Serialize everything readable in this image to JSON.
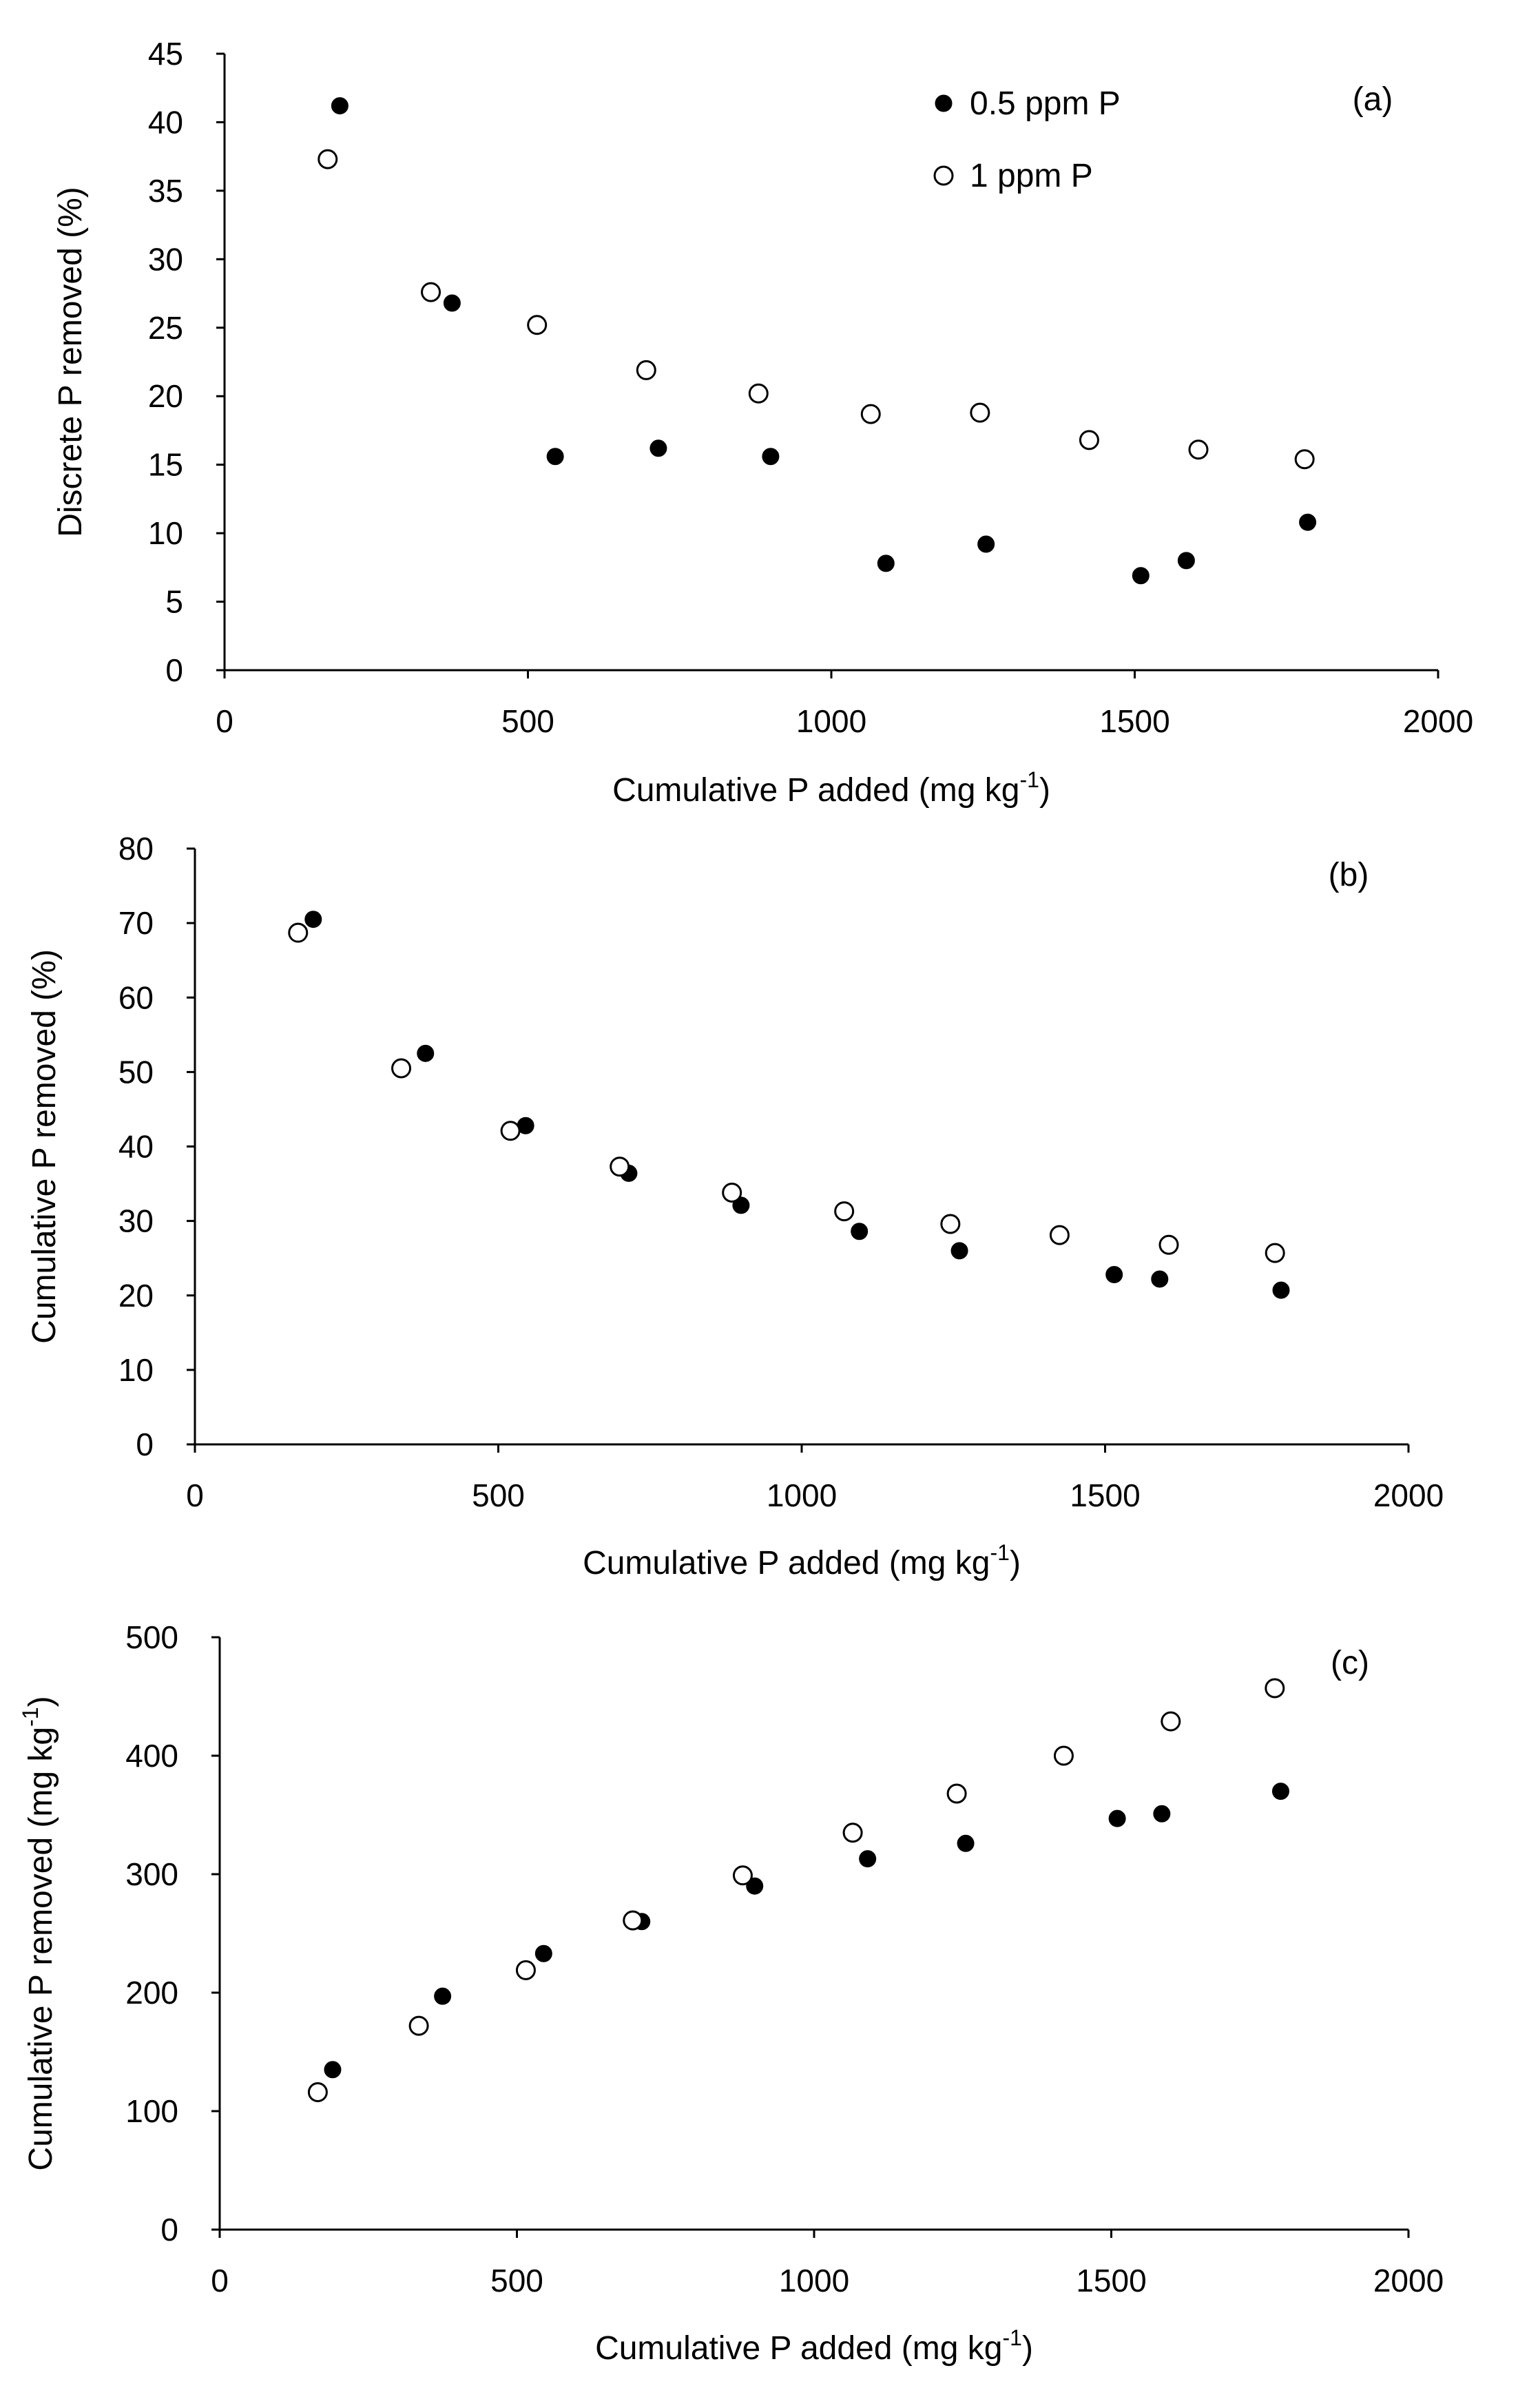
{
  "figure_colors": {
    "filled": "#000000",
    "open_fill": "#ffffff",
    "stroke": "#000000"
  },
  "chart_data": [
    {
      "panel": "(a)",
      "type": "scatter",
      "title": "",
      "xlabel": "Cumulative P added (mg kg",
      "xlabel_sup": "-1",
      "xlabel_end": ")",
      "ylabel": "Discrete P removed (%)",
      "xlim": [
        0,
        2000
      ],
      "ylim": [
        0,
        45
      ],
      "xticks": [
        0,
        500,
        1000,
        1500,
        2000
      ],
      "yticks": [
        0,
        5,
        10,
        15,
        20,
        25,
        30,
        35,
        40,
        45
      ],
      "legend": {
        "position": "top-right",
        "entries": [
          "0.5 ppm P",
          "1 ppm P"
        ]
      },
      "series": [
        {
          "name": "0.5 ppm P",
          "marker": "filled-circle",
          "x": [
            190,
            375,
            545,
            715,
            900,
            1090,
            1255,
            1510,
            1585,
            1785
          ],
          "y": [
            41.2,
            26.8,
            15.6,
            16.2,
            15.6,
            7.8,
            9.2,
            6.9,
            8.0,
            10.8
          ]
        },
        {
          "name": "1 ppm P",
          "marker": "open-circle",
          "x": [
            170,
            340,
            515,
            695,
            880,
            1065,
            1245,
            1425,
            1605,
            1780
          ],
          "y": [
            37.3,
            27.6,
            25.2,
            21.9,
            20.2,
            18.7,
            18.8,
            16.8,
            16.1,
            15.4
          ]
        }
      ]
    },
    {
      "panel": "(b)",
      "type": "scatter",
      "title": "",
      "xlabel": "Cumulative P added (mg kg",
      "xlabel_sup": "-1",
      "xlabel_end": ")",
      "ylabel": "Cumulative P removed (%)",
      "xlim": [
        0,
        2000
      ],
      "ylim": [
        0,
        80
      ],
      "xticks": [
        0,
        500,
        1000,
        1500,
        2000
      ],
      "yticks": [
        0,
        10,
        20,
        30,
        40,
        50,
        60,
        70,
        80
      ],
      "series": [
        {
          "name": "0.5 ppm P",
          "marker": "filled-circle",
          "x": [
            195,
            380,
            545,
            715,
            900,
            1095,
            1260,
            1515,
            1590,
            1790
          ],
          "y": [
            70.5,
            52.5,
            42.8,
            36.4,
            32.1,
            28.6,
            26.0,
            22.8,
            22.2,
            20.7
          ]
        },
        {
          "name": "1 ppm P",
          "marker": "open-circle",
          "x": [
            170,
            340,
            520,
            700,
            885,
            1070,
            1245,
            1425,
            1605,
            1780
          ],
          "y": [
            68.7,
            50.5,
            42.1,
            37.3,
            33.8,
            31.3,
            29.6,
            28.1,
            26.8,
            25.7
          ]
        }
      ]
    },
    {
      "panel": "(c)",
      "type": "scatter",
      "title": "",
      "xlabel": "Cumulative P added (mg kg",
      "xlabel_sup": "-1",
      "xlabel_end": ")",
      "ylabel": "Cumulative P removed (mg kg",
      "ylabel_sup": "-1",
      "ylabel_end": ")",
      "xlim": [
        0,
        2000
      ],
      "ylim": [
        0,
        500
      ],
      "xticks": [
        0,
        500,
        1000,
        1500,
        2000
      ],
      "yticks": [
        0,
        100,
        200,
        300,
        400,
        500
      ],
      "series": [
        {
          "name": "0.5 ppm P",
          "marker": "filled-circle",
          "x": [
            190,
            375,
            545,
            710,
            900,
            1090,
            1255,
            1510,
            1585,
            1785
          ],
          "y": [
            135,
            197,
            233,
            260,
            290,
            313,
            326,
            347,
            351,
            370
          ]
        },
        {
          "name": "1 ppm P",
          "marker": "open-circle",
          "x": [
            165,
            335,
            515,
            695,
            880,
            1065,
            1240,
            1420,
            1600,
            1775
          ],
          "y": [
            116,
            172,
            219,
            261,
            299,
            335,
            368,
            400,
            429,
            457
          ]
        }
      ]
    }
  ]
}
